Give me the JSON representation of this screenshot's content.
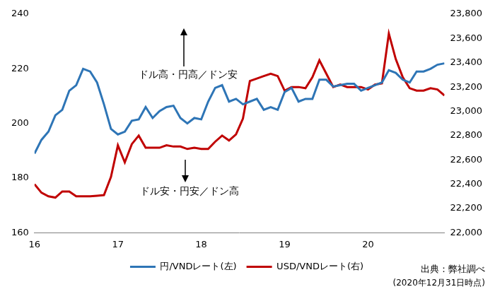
{
  "chart_data": {
    "type": "line",
    "x": [
      16,
      16.083,
      16.167,
      16.25,
      16.333,
      16.417,
      16.5,
      16.583,
      16.667,
      16.75,
      16.833,
      16.917,
      17,
      17.083,
      17.167,
      17.25,
      17.333,
      17.417,
      17.5,
      17.583,
      17.667,
      17.75,
      17.833,
      17.917,
      18,
      18.083,
      18.167,
      18.25,
      18.333,
      18.417,
      18.5,
      18.583,
      18.667,
      18.75,
      18.833,
      18.917,
      19,
      19.083,
      19.167,
      19.25,
      19.333,
      19.417,
      19.5,
      19.583,
      19.667,
      19.75,
      19.833,
      19.917,
      20,
      20.083,
      20.167,
      20.25,
      20.333,
      20.417,
      20.5,
      20.583,
      20.667,
      20.75,
      20.833,
      20.917
    ],
    "series": [
      {
        "name": "円/VNDレート(左)",
        "color": "#2e75b6",
        "axis": "y",
        "values": [
          189,
          194,
          197,
          203,
          205,
          212,
          214,
          220,
          219,
          215,
          207,
          198,
          196,
          197,
          201,
          201.5,
          206,
          202,
          204.5,
          206,
          206.5,
          202,
          200,
          202,
          201.5,
          208,
          213,
          214,
          208,
          209,
          207,
          208,
          209,
          205,
          206,
          205,
          211.5,
          213,
          208,
          209,
          209,
          216,
          216,
          213.5,
          214,
          214.5,
          214.5,
          212,
          213,
          214,
          215,
          219.5,
          218.5,
          216,
          215,
          219,
          219,
          220,
          221.5,
          222
        ]
      },
      {
        "name": "USD/VNDレート(右)",
        "color": "#c00000",
        "axis": "y2",
        "values": [
          22400,
          22330,
          22300,
          22290,
          22340,
          22340,
          22300,
          22300,
          22300,
          22305,
          22310,
          22460,
          22720,
          22580,
          22730,
          22800,
          22700,
          22700,
          22700,
          22720,
          22710,
          22710,
          22690,
          22700,
          22690,
          22690,
          22750,
          22800,
          22760,
          22810,
          22940,
          23250,
          23270,
          23290,
          23310,
          23290,
          23170,
          23200,
          23200,
          23190,
          23280,
          23420,
          23310,
          23200,
          23220,
          23200,
          23200,
          23200,
          23180,
          23220,
          23230,
          23640,
          23430,
          23280,
          23190,
          23170,
          23170,
          23190,
          23180,
          23130
        ]
      }
    ],
    "xlim": [
      16,
      20.917
    ],
    "xticks": [
      16,
      17,
      18,
      19,
      20
    ],
    "ylim": [
      160,
      240
    ],
    "yticks": [
      160,
      180,
      200,
      220,
      240
    ],
    "y2lim": [
      22000,
      23800
    ],
    "y2ticks": [
      {
        "value": 22000,
        "label": "22,000"
      },
      {
        "value": 22200,
        "label": "22,200"
      },
      {
        "value": 22400,
        "label": "22,400"
      },
      {
        "value": 22600,
        "label": "22,600"
      },
      {
        "value": 22800,
        "label": "22,800"
      },
      {
        "value": 23000,
        "label": "23,000"
      },
      {
        "value": 23200,
        "label": "23,200"
      },
      {
        "value": 23400,
        "label": "23,400"
      },
      {
        "value": 23600,
        "label": "23,600"
      },
      {
        "value": 23800,
        "label": "23,800"
      }
    ],
    "annotations": [
      "ドル高・円高／ドン安",
      "ドル安・円安／ドン高"
    ],
    "source": [
      "出典：弊社調べ",
      "(2020年12月31日時点)"
    ],
    "grid": false,
    "legend": "bottom"
  }
}
